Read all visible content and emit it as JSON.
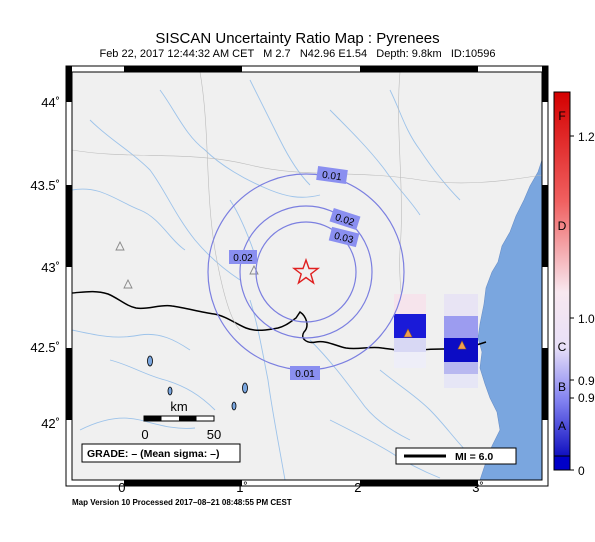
{
  "map": {
    "title": "SISCAN Uncertainty Ratio Map : Pyrenees",
    "subtitle": "Feb 22, 2017 12:44:32 AM CET   M 2.7   N42.96 E1.54   Depth: 9.8km   ID:10596",
    "lat_labels": [
      "44˚",
      "43.5˚",
      "43˚",
      "42.5˚",
      "42˚"
    ],
    "lon_labels": [
      "0˚",
      "1˚",
      "2˚",
      "3˚"
    ],
    "contour_labels": [
      "0.01",
      "0.02",
      "0.03",
      "0.02",
      "0.01"
    ],
    "scale": {
      "unit": "km",
      "min": "0",
      "max": "50"
    },
    "grade": "GRADE: – (Mean sigma: –)",
    "mi_legend": "MI = 6.0",
    "footer": "Map Version 10 Processed 2017–08–21 08:48:55 PM CEST",
    "colors": {
      "land": "#f0f0f0",
      "sea": "#7aa6df",
      "contour": "#7b7fe0",
      "river": "#9dc3ea",
      "epicenter": "#e02020",
      "label_bg": "#8a8ff0"
    }
  },
  "colorbar": {
    "labels": [
      "F",
      "1.2",
      "D",
      "1.0",
      "C",
      "B",
      "0.9",
      "0.9",
      "A",
      "0"
    ]
  }
}
